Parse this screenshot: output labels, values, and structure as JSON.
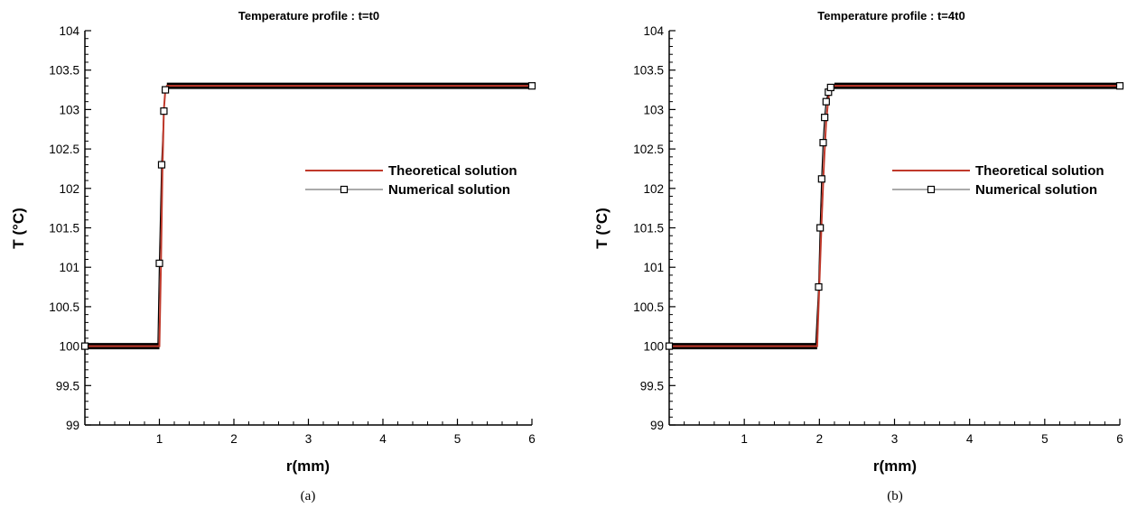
{
  "colors": {
    "theory": "#c0392b",
    "numerical": "#000000",
    "axis": "#000000"
  },
  "chart_data": [
    {
      "type": "line",
      "title": "Temperature profile : t=t0",
      "caption": "(a)",
      "xlabel": "r(mm)",
      "ylabel": "T (°C)",
      "xlim": [
        0,
        6
      ],
      "ylim": [
        99,
        104
      ],
      "xticks": [
        1,
        2,
        3,
        4,
        5,
        6
      ],
      "yticks": [
        99,
        99.5,
        100,
        100.5,
        101,
        101.5,
        102,
        102.5,
        103,
        103.5,
        104
      ],
      "ytick_labels": [
        "99",
        "99.5",
        "100",
        "100.5",
        "101",
        "101.5",
        "102",
        "102.5",
        "103",
        "103.5",
        "104"
      ],
      "legend_position": "right-middle",
      "series": [
        {
          "name": "Theoretical solution",
          "x": [
            0,
            1.0,
            1.0,
            1.02,
            1.04,
            1.06,
            1.08,
            1.1,
            6
          ],
          "y": [
            100,
            100,
            100.0,
            101.0,
            102.2,
            103.0,
            103.25,
            103.3,
            103.3
          ]
        },
        {
          "name": "Numerical solution",
          "x": [
            0,
            0.25,
            0.5,
            0.75,
            0.98,
            1.0,
            1.03,
            1.06,
            1.08,
            1.1,
            1.5,
            2,
            2.5,
            3,
            3.5,
            4,
            4.5,
            5,
            5.5,
            6
          ],
          "y": [
            100,
            100,
            100,
            100,
            100,
            101.05,
            102.3,
            102.98,
            103.25,
            103.3,
            103.3,
            103.3,
            103.3,
            103.3,
            103.3,
            103.3,
            103.3,
            103.3,
            103.3,
            103.3
          ]
        }
      ]
    },
    {
      "type": "line",
      "title": "Temperature profile : t=4t0",
      "caption": "(b)",
      "xlabel": "r(mm)",
      "ylabel": "T (°C)",
      "xlim": [
        0,
        6
      ],
      "ylim": [
        99,
        104
      ],
      "xticks": [
        1,
        2,
        3,
        4,
        5,
        6
      ],
      "yticks": [
        99,
        99.5,
        100,
        100.5,
        101,
        101.5,
        102,
        102.5,
        103,
        103.5,
        104
      ],
      "ytick_labels": [
        "99",
        "99.5",
        "100",
        "100.5",
        "101",
        "101.5",
        "102",
        "102.5",
        "103",
        "103.5",
        "104"
      ],
      "legend_position": "right-middle",
      "series": [
        {
          "name": "Theoretical solution",
          "x": [
            0,
            1.97,
            1.97,
            2.0,
            2.03,
            2.06,
            2.09,
            2.12,
            2.15,
            2.2,
            6
          ],
          "y": [
            100,
            100,
            100.0,
            100.8,
            101.6,
            102.3,
            102.85,
            103.15,
            103.28,
            103.3,
            103.3
          ]
        },
        {
          "name": "Numerical solution",
          "x": [
            0,
            0.5,
            1,
            1.5,
            1.95,
            1.99,
            2.01,
            2.03,
            2.05,
            2.07,
            2.09,
            2.12,
            2.15,
            2.2,
            2.5,
            3,
            3.5,
            4,
            4.5,
            5,
            5.5,
            6
          ],
          "y": [
            100,
            100,
            100,
            100,
            100,
            100.75,
            101.5,
            102.12,
            102.58,
            102.9,
            103.1,
            103.22,
            103.28,
            103.3,
            103.3,
            103.3,
            103.3,
            103.3,
            103.3,
            103.3,
            103.3,
            103.3
          ]
        }
      ]
    }
  ]
}
